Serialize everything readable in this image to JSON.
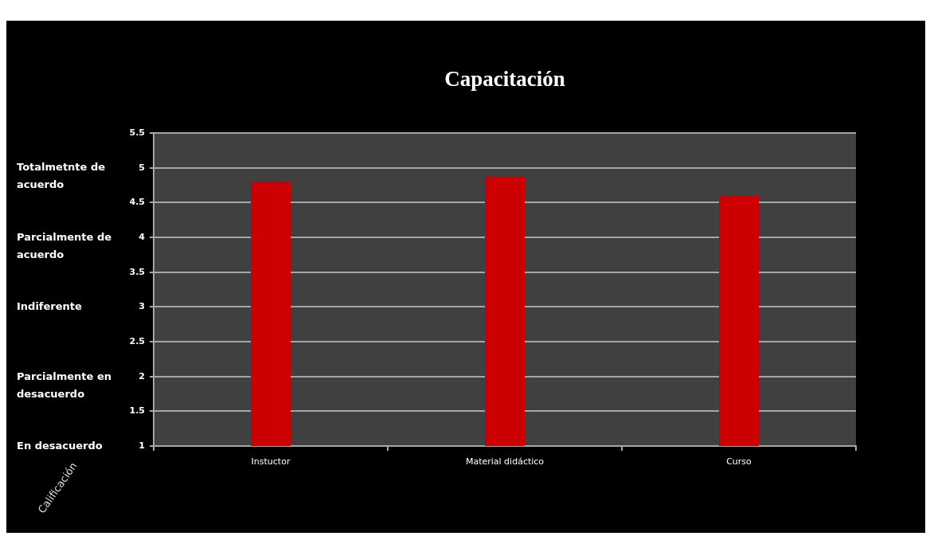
{
  "chart_data": {
    "type": "bar",
    "title": "Capacitación",
    "ylabel": "Calificación",
    "categories": [
      "Instuctor",
      "Material didáctico",
      "Curso"
    ],
    "values": [
      4.8,
      4.87,
      4.6
    ],
    "color": "#cc0000",
    "ylim": [
      1,
      5.5
    ],
    "yticks": [
      1,
      1.5,
      2,
      2.5,
      3,
      3.5,
      4,
      4.5,
      5,
      5.5
    ],
    "grid": "y",
    "annotations": [
      "Totalmetnte de acuerdo",
      "Parcialmente de acuerdo",
      "Indiferente",
      "Parcialmente en desacuerdo",
      "En desacuerdo"
    ]
  }
}
